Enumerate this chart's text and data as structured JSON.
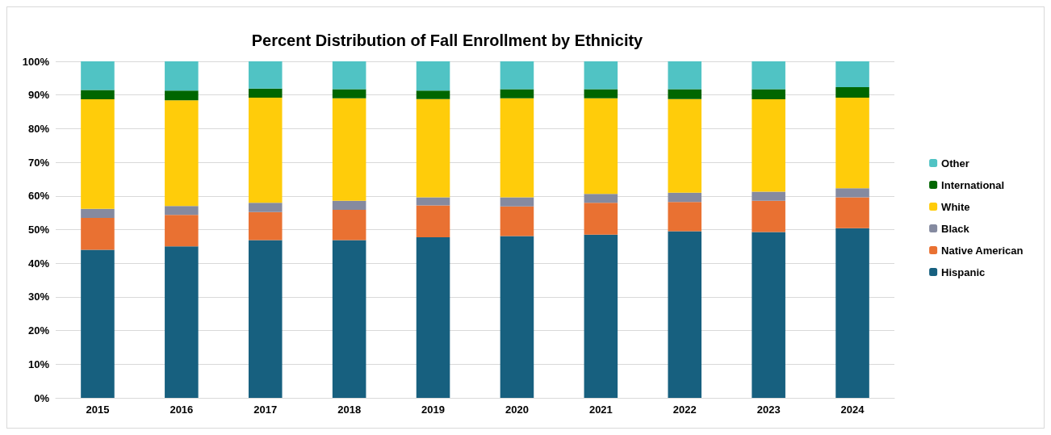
{
  "chart_data": {
    "type": "bar",
    "title": "Percent Distribution of Fall Enrollment by Ethnicity",
    "stacked": true,
    "categories": [
      "2015",
      "2016",
      "2017",
      "2018",
      "2019",
      "2020",
      "2021",
      "2022",
      "2023",
      "2024"
    ],
    "series": [
      {
        "name": "Hispanic",
        "color": "#17607f",
        "values": [
          44.0,
          45.0,
          46.9,
          46.9,
          47.7,
          48.1,
          48.5,
          49.5,
          49.3,
          50.4
        ]
      },
      {
        "name": "Native American",
        "color": "#e97132",
        "values": [
          9.5,
          9.4,
          8.3,
          9.0,
          9.5,
          8.8,
          9.5,
          8.7,
          9.3,
          9.2
        ]
      },
      {
        "name": "Black",
        "color": "#858aa0",
        "values": [
          2.7,
          2.6,
          2.8,
          2.7,
          2.4,
          2.7,
          2.6,
          2.8,
          2.7,
          2.7
        ]
      },
      {
        "name": "White",
        "color": "#ffcc0a",
        "values": [
          32.5,
          31.4,
          31.2,
          30.4,
          29.2,
          29.4,
          28.4,
          27.8,
          27.4,
          26.9
        ]
      },
      {
        "name": "International",
        "color": "#006600",
        "values": [
          2.8,
          2.9,
          2.7,
          2.7,
          2.5,
          2.7,
          2.7,
          2.9,
          3.0,
          3.1
        ]
      },
      {
        "name": "Other",
        "color": "#50c3c4",
        "values": [
          8.5,
          8.7,
          8.1,
          8.3,
          8.7,
          8.3,
          8.3,
          8.3,
          8.3,
          7.7
        ]
      }
    ],
    "ylim": [
      0,
      100
    ],
    "yticks": [
      {
        "value": 0,
        "label": "0%"
      },
      {
        "value": 10,
        "label": "10%"
      },
      {
        "value": 20,
        "label": "20%"
      },
      {
        "value": 30,
        "label": "30%"
      },
      {
        "value": 40,
        "label": "40%"
      },
      {
        "value": 50,
        "label": "50%"
      },
      {
        "value": 60,
        "label": "60%"
      },
      {
        "value": 70,
        "label": "70%"
      },
      {
        "value": 80,
        "label": "80%"
      },
      {
        "value": 90,
        "label": "90%"
      },
      {
        "value": 100,
        "label": "100%"
      }
    ],
    "grid": "y",
    "legend": "right"
  }
}
